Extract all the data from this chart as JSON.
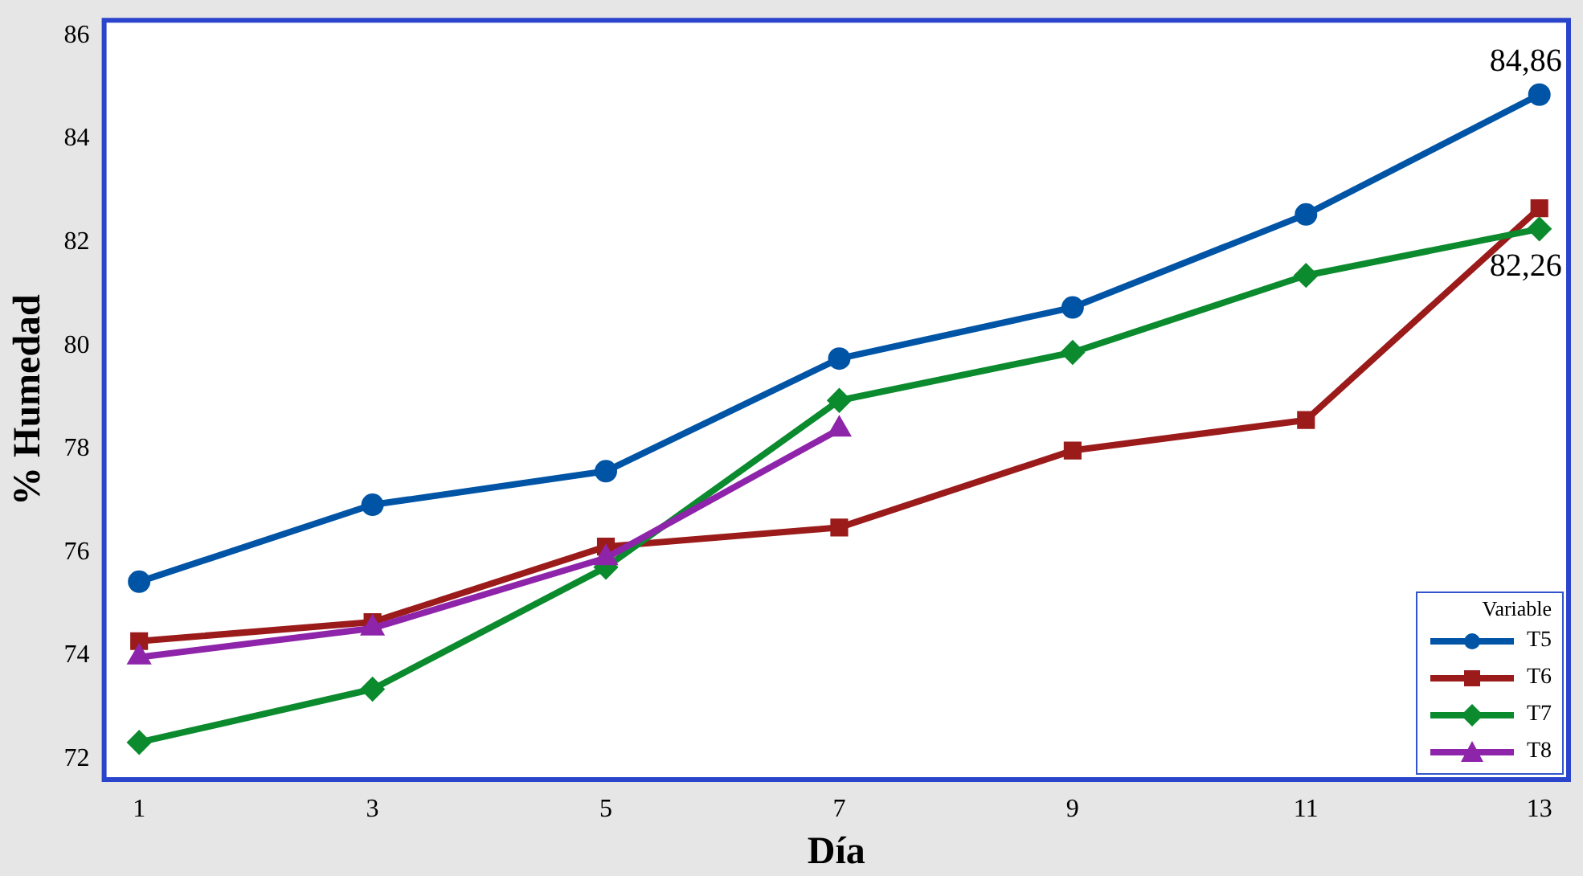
{
  "chart_data": {
    "type": "line",
    "xlabel": "Día",
    "ylabel": "% Humedad",
    "legend_title": "Variable",
    "legend": "bottom right",
    "grid": false,
    "line_style": "solid",
    "x": [
      1,
      3,
      5,
      7,
      9,
      11,
      13
    ],
    "xlim": [
      0.7,
      13.25
    ],
    "xticks": [
      1,
      3,
      5,
      7,
      9,
      11,
      13
    ],
    "ylim": [
      71.6,
      86.3
    ],
    "yticks": [
      72,
      74,
      76,
      78,
      80,
      82,
      84,
      86
    ],
    "series": [
      {
        "name": "T5",
        "color": "#0054a6",
        "marker": "circle",
        "values": [
          75.43,
          76.92,
          77.57,
          79.75,
          80.74,
          82.54,
          84.86
        ]
      },
      {
        "name": "T6",
        "color": "#9b1b1b",
        "marker": "square",
        "values": [
          74.28,
          74.65,
          76.11,
          76.48,
          77.97,
          78.56,
          82.66
        ]
      },
      {
        "name": "T7",
        "color": "#0b8a2e",
        "marker": "diamond",
        "values": [
          72.32,
          73.35,
          75.71,
          78.94,
          79.87,
          81.36,
          82.26
        ]
      },
      {
        "name": "T8",
        "color": "#8e24aa",
        "marker": "triangle",
        "x": [
          1,
          3,
          5,
          7
        ],
        "values": [
          73.97,
          74.53,
          75.89,
          78.38
        ]
      }
    ],
    "annotations": [
      {
        "text": "84,86",
        "x": 13,
        "y": 84.86
      },
      {
        "text": "82,26",
        "x": 13,
        "y": 82.26
      }
    ]
  }
}
